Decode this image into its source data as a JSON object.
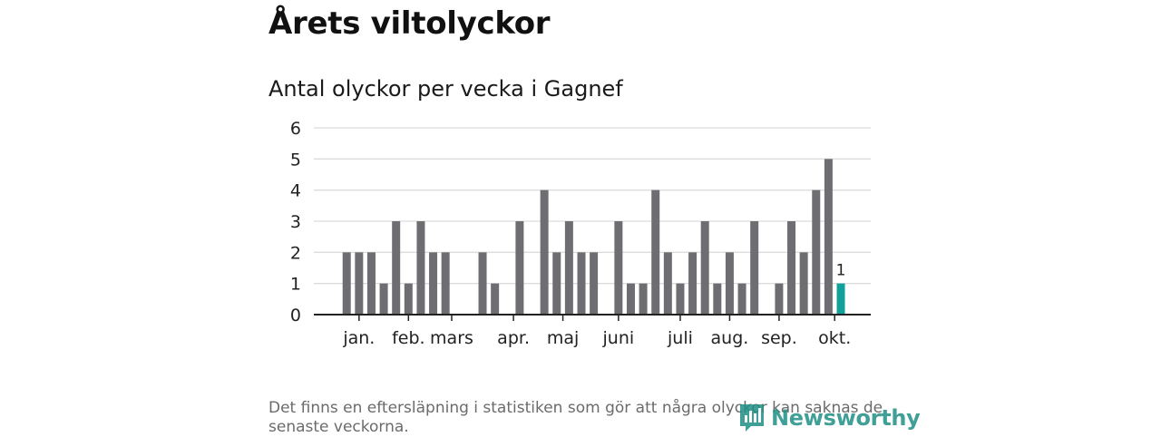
{
  "title": "Årets viltolyckor",
  "subtitle": "Antal olyckor per vecka i Gagnef",
  "footnote": "Det finns en eftersläpning i statistiken som gör att några olyckor kan saknas de senaste veckorna.",
  "logo_text": "Newsworthy",
  "colors": {
    "bar": "#6e6d72",
    "highlight": "#12a19a",
    "grid": "#dcdcdc",
    "axis": "#222222"
  },
  "chart_data": {
    "type": "bar",
    "title": "Antal olyckor per vecka i Gagnef",
    "xlabel": "",
    "ylabel": "",
    "ylim": [
      0,
      6
    ],
    "yticks": [
      0,
      1,
      2,
      3,
      4,
      5,
      6
    ],
    "grid": true,
    "legend": "none",
    "weeks": [
      1,
      2,
      3,
      4,
      5,
      6,
      7,
      8,
      9,
      10,
      11,
      12,
      13,
      14,
      15,
      16,
      17,
      18,
      19,
      20,
      21,
      22,
      23,
      24,
      25,
      26,
      27,
      28,
      29,
      30,
      31,
      32,
      33,
      34,
      35,
      36,
      37,
      38,
      39,
      40,
      41,
      42,
      43,
      44
    ],
    "values": [
      0,
      2,
      2,
      2,
      1,
      3,
      1,
      3,
      2,
      2,
      0,
      0,
      2,
      1,
      0,
      3,
      0,
      4,
      2,
      3,
      2,
      2,
      0,
      3,
      1,
      1,
      4,
      2,
      1,
      2,
      3,
      1,
      2,
      1,
      3,
      0,
      1,
      3,
      2,
      4,
      5,
      1,
      0,
      0
    ],
    "highlight_week": 42,
    "highlight_label": "1",
    "month_labels": [
      {
        "label": "jan.",
        "week": 3
      },
      {
        "label": "feb.",
        "week": 7
      },
      {
        "label": "mars",
        "week": 10.5
      },
      {
        "label": "apr.",
        "week": 15.5
      },
      {
        "label": "maj",
        "week": 19.5
      },
      {
        "label": "juni",
        "week": 24
      },
      {
        "label": "juli",
        "week": 29
      },
      {
        "label": "aug.",
        "week": 33
      },
      {
        "label": "sep.",
        "week": 37
      },
      {
        "label": "okt.",
        "week": 41.5
      }
    ]
  }
}
